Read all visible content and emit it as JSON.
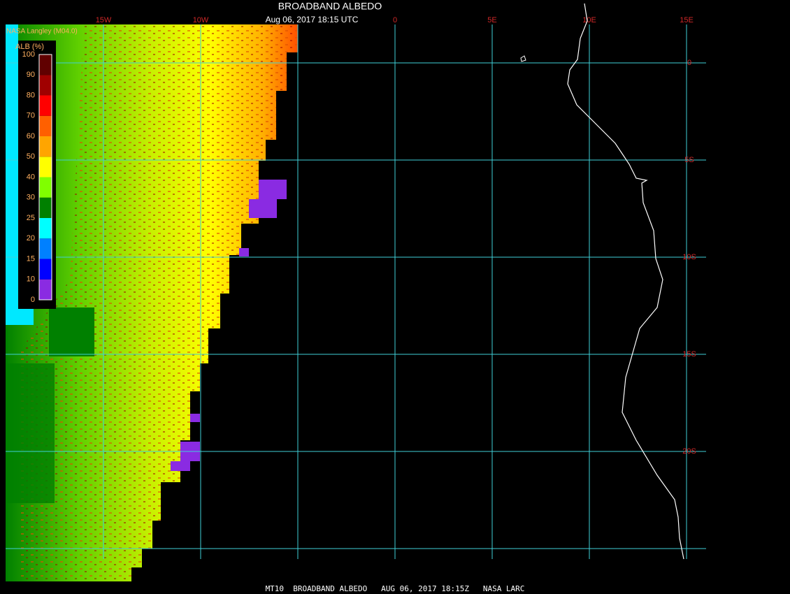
{
  "header": {
    "title": "BROADBAND ALBEDO",
    "subtitle": "Aug 06, 2017 18:15 UTC",
    "source": "NASA Langley (M04.0)"
  },
  "legend": {
    "title": "ALB (%)",
    "levels": [
      0,
      10,
      15,
      20,
      25,
      30,
      40,
      50,
      60,
      70,
      80,
      90,
      100
    ],
    "colors": [
      "#8a2be2",
      "#0000ff",
      "#0080ff",
      "#00ffff",
      "#008000",
      "#80ff00",
      "#ffff00",
      "#ffa500",
      "#ff6000",
      "#ff0000",
      "#a00000",
      "#600000"
    ]
  },
  "map": {
    "lon_grid": [
      -15,
      -10,
      -5,
      0,
      5,
      10,
      15
    ],
    "lon_labels": [
      {
        "value": -15,
        "label": "15W"
      },
      {
        "value": -10,
        "label": "10W"
      },
      0,
      {
        "value": 5,
        "label": "5E"
      },
      {
        "value": 10,
        "label": "10E"
      },
      {
        "value": 15,
        "label": "15E"
      }
    ],
    "lat_grid": [
      0,
      -5,
      -10,
      -15,
      -20,
      -25
    ],
    "lat_labels": [
      0,
      {
        "value": -5,
        "label": "5S"
      },
      {
        "value": -10,
        "label": "10S"
      },
      {
        "value": -15,
        "label": "15S"
      },
      {
        "value": -20,
        "label": "20S"
      }
    ]
  },
  "footer": "MT10  BROADBAND ALBEDO   AUG 06, 2017 18:15Z   NASA LARC"
}
